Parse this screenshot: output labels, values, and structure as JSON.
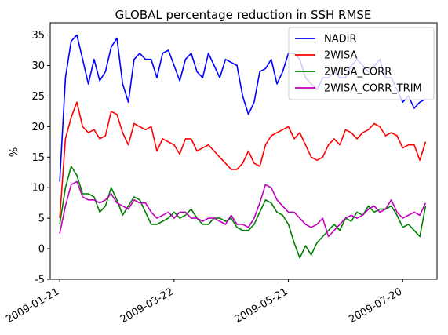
{
  "chart_data": {
    "type": "line",
    "title": "GLOBAL percentage reduction in SSH RMSE",
    "xlabel": "",
    "ylabel": "%",
    "x_range": [
      "2009-01-16",
      "2009-08-07"
    ],
    "ylim": [
      -5,
      37
    ],
    "y_ticks": [
      -5,
      0,
      5,
      10,
      15,
      20,
      25,
      30,
      35
    ],
    "x_ticks": [
      "2009-01-21",
      "2009-03-22",
      "2009-05-21",
      "2009-07-20"
    ],
    "grid": false,
    "legend_position": "top-right",
    "series": [
      {
        "name": "NADIR",
        "color": "#0000ff",
        "x": [
          "2009-01-21",
          "2009-01-24",
          "2009-01-27",
          "2009-01-30",
          "2009-02-02",
          "2009-02-05",
          "2009-02-08",
          "2009-02-11",
          "2009-02-14",
          "2009-02-17",
          "2009-02-20",
          "2009-02-23",
          "2009-02-26",
          "2009-03-01",
          "2009-03-04",
          "2009-03-07",
          "2009-03-10",
          "2009-03-13",
          "2009-03-16",
          "2009-03-19",
          "2009-03-22",
          "2009-03-25",
          "2009-03-28",
          "2009-03-31",
          "2009-04-03",
          "2009-04-06",
          "2009-04-09",
          "2009-04-12",
          "2009-04-15",
          "2009-04-18",
          "2009-04-21",
          "2009-04-24",
          "2009-04-27",
          "2009-04-30",
          "2009-05-03",
          "2009-05-06",
          "2009-05-09",
          "2009-05-12",
          "2009-05-15",
          "2009-05-18",
          "2009-05-21",
          "2009-05-24",
          "2009-05-27",
          "2009-05-30",
          "2009-06-02",
          "2009-06-05",
          "2009-06-08",
          "2009-06-11",
          "2009-06-14",
          "2009-06-17",
          "2009-06-20",
          "2009-06-23",
          "2009-06-26",
          "2009-06-29",
          "2009-07-02",
          "2009-07-05",
          "2009-07-08",
          "2009-07-11",
          "2009-07-14",
          "2009-07-17",
          "2009-07-20",
          "2009-07-23",
          "2009-07-26",
          "2009-07-29",
          "2009-08-01"
        ],
        "y": [
          11,
          28,
          34,
          35,
          31,
          27,
          31,
          27.5,
          29,
          33,
          34.5,
          27,
          24,
          31,
          32,
          31,
          31,
          28,
          32,
          32.5,
          30,
          27.5,
          31,
          32,
          29,
          28,
          32,
          30,
          28,
          31,
          30.5,
          30,
          25,
          22,
          24,
          29,
          29.5,
          31,
          27,
          29,
          32,
          32,
          31,
          28,
          27,
          26,
          28,
          28,
          29,
          28,
          28,
          30,
          31,
          30,
          29,
          30,
          31,
          28,
          28,
          26,
          24,
          25,
          23,
          24,
          24.5
        ]
      },
      {
        "name": "2WISA",
        "color": "#ff0000",
        "x": [
          "2009-01-21",
          "2009-01-24",
          "2009-01-27",
          "2009-01-30",
          "2009-02-02",
          "2009-02-05",
          "2009-02-08",
          "2009-02-11",
          "2009-02-14",
          "2009-02-17",
          "2009-02-20",
          "2009-02-23",
          "2009-02-26",
          "2009-03-01",
          "2009-03-04",
          "2009-03-07",
          "2009-03-10",
          "2009-03-13",
          "2009-03-16",
          "2009-03-19",
          "2009-03-22",
          "2009-03-25",
          "2009-03-28",
          "2009-03-31",
          "2009-04-03",
          "2009-04-06",
          "2009-04-09",
          "2009-04-12",
          "2009-04-15",
          "2009-04-18",
          "2009-04-21",
          "2009-04-24",
          "2009-04-27",
          "2009-04-30",
          "2009-05-03",
          "2009-05-06",
          "2009-05-09",
          "2009-05-12",
          "2009-05-15",
          "2009-05-18",
          "2009-05-21",
          "2009-05-24",
          "2009-05-27",
          "2009-05-30",
          "2009-06-02",
          "2009-06-05",
          "2009-06-08",
          "2009-06-11",
          "2009-06-14",
          "2009-06-17",
          "2009-06-20",
          "2009-06-23",
          "2009-06-26",
          "2009-06-29",
          "2009-07-02",
          "2009-07-05",
          "2009-07-08",
          "2009-07-11",
          "2009-07-14",
          "2009-07-17",
          "2009-07-20",
          "2009-07-23",
          "2009-07-26",
          "2009-07-29",
          "2009-08-01"
        ],
        "y": [
          5,
          18,
          21.5,
          24,
          20,
          19,
          19.5,
          18,
          18.5,
          22.5,
          22,
          19,
          17,
          20.5,
          20,
          19.5,
          20,
          16,
          18,
          17.5,
          17,
          15.5,
          18,
          18,
          16,
          16.5,
          17,
          16,
          15,
          14,
          13,
          13,
          14,
          16,
          14,
          13.5,
          17,
          18.5,
          19,
          19.5,
          20,
          18,
          19,
          17,
          15,
          14.5,
          15,
          17,
          18,
          17,
          19.5,
          19,
          18,
          19,
          19.5,
          20.5,
          20,
          18.5,
          19,
          18.5,
          16.5,
          17,
          17,
          14.5,
          17.5
        ]
      },
      {
        "name": "2WISA_CORR",
        "color": "#008000",
        "x": [
          "2009-01-21",
          "2009-01-24",
          "2009-01-27",
          "2009-01-30",
          "2009-02-02",
          "2009-02-05",
          "2009-02-08",
          "2009-02-11",
          "2009-02-14",
          "2009-02-17",
          "2009-02-20",
          "2009-02-23",
          "2009-02-26",
          "2009-03-01",
          "2009-03-04",
          "2009-03-07",
          "2009-03-10",
          "2009-03-13",
          "2009-03-16",
          "2009-03-19",
          "2009-03-22",
          "2009-03-25",
          "2009-03-28",
          "2009-03-31",
          "2009-04-03",
          "2009-04-06",
          "2009-04-09",
          "2009-04-12",
          "2009-04-15",
          "2009-04-18",
          "2009-04-21",
          "2009-04-24",
          "2009-04-27",
          "2009-04-30",
          "2009-05-03",
          "2009-05-06",
          "2009-05-09",
          "2009-05-12",
          "2009-05-15",
          "2009-05-18",
          "2009-05-21",
          "2009-05-24",
          "2009-05-27",
          "2009-05-30",
          "2009-06-02",
          "2009-06-05",
          "2009-06-08",
          "2009-06-11",
          "2009-06-14",
          "2009-06-17",
          "2009-06-20",
          "2009-06-23",
          "2009-06-26",
          "2009-06-29",
          "2009-07-02",
          "2009-07-05",
          "2009-07-08",
          "2009-07-11",
          "2009-07-14",
          "2009-07-17",
          "2009-07-20",
          "2009-07-23",
          "2009-07-26",
          "2009-07-29",
          "2009-08-01"
        ],
        "y": [
          4,
          10,
          13.5,
          12,
          9,
          9,
          8.5,
          6,
          7,
          10,
          8,
          5.5,
          7,
          8.5,
          8,
          6,
          4,
          4,
          4.5,
          5,
          6,
          5,
          5.5,
          6.5,
          5,
          4,
          4,
          5,
          5,
          4.5,
          5,
          3.5,
          3,
          3,
          4,
          6,
          8,
          7.5,
          6,
          5.5,
          4,
          1,
          -1.5,
          0.5,
          -1,
          1,
          2,
          3,
          4,
          3,
          5,
          4.5,
          6,
          5.5,
          7,
          6,
          6.5,
          6.5,
          7,
          5.5,
          3.5,
          4,
          3,
          2,
          7
        ]
      },
      {
        "name": "2WISA_CORR_TRIM",
        "color": "#bf00bf",
        "x": [
          "2009-01-21",
          "2009-01-24",
          "2009-01-27",
          "2009-01-30",
          "2009-02-02",
          "2009-02-05",
          "2009-02-08",
          "2009-02-11",
          "2009-02-14",
          "2009-02-17",
          "2009-02-20",
          "2009-02-23",
          "2009-02-26",
          "2009-03-01",
          "2009-03-04",
          "2009-03-07",
          "2009-03-10",
          "2009-03-13",
          "2009-03-16",
          "2009-03-19",
          "2009-03-22",
          "2009-03-25",
          "2009-03-28",
          "2009-03-31",
          "2009-04-03",
          "2009-04-06",
          "2009-04-09",
          "2009-04-12",
          "2009-04-15",
          "2009-04-18",
          "2009-04-21",
          "2009-04-24",
          "2009-04-27",
          "2009-04-30",
          "2009-05-03",
          "2009-05-06",
          "2009-05-09",
          "2009-05-12",
          "2009-05-15",
          "2009-05-18",
          "2009-05-21",
          "2009-05-24",
          "2009-05-27",
          "2009-05-30",
          "2009-06-02",
          "2009-06-05",
          "2009-06-08",
          "2009-06-11",
          "2009-06-14",
          "2009-06-17",
          "2009-06-20",
          "2009-06-23",
          "2009-06-26",
          "2009-06-29",
          "2009-07-02",
          "2009-07-05",
          "2009-07-08",
          "2009-07-11",
          "2009-07-14",
          "2009-07-17",
          "2009-07-20",
          "2009-07-23",
          "2009-07-26",
          "2009-07-29",
          "2009-08-01"
        ],
        "y": [
          2.5,
          7,
          10.5,
          11,
          8.5,
          8,
          8,
          7.5,
          8,
          9,
          7.5,
          7,
          6.5,
          8,
          7.5,
          7.5,
          6,
          5,
          5.5,
          6,
          5,
          6,
          6,
          5,
          5,
          4.5,
          5,
          5,
          4.5,
          4,
          5.5,
          4,
          4,
          3.5,
          5,
          7.5,
          10.5,
          10,
          8,
          7,
          6,
          6,
          5,
          4,
          3.5,
          4,
          5,
          2,
          3,
          4,
          5,
          5.5,
          5,
          5.5,
          6.5,
          7,
          6,
          6.5,
          8,
          6,
          5,
          5.5,
          6,
          5.5,
          7.5
        ]
      }
    ]
  }
}
